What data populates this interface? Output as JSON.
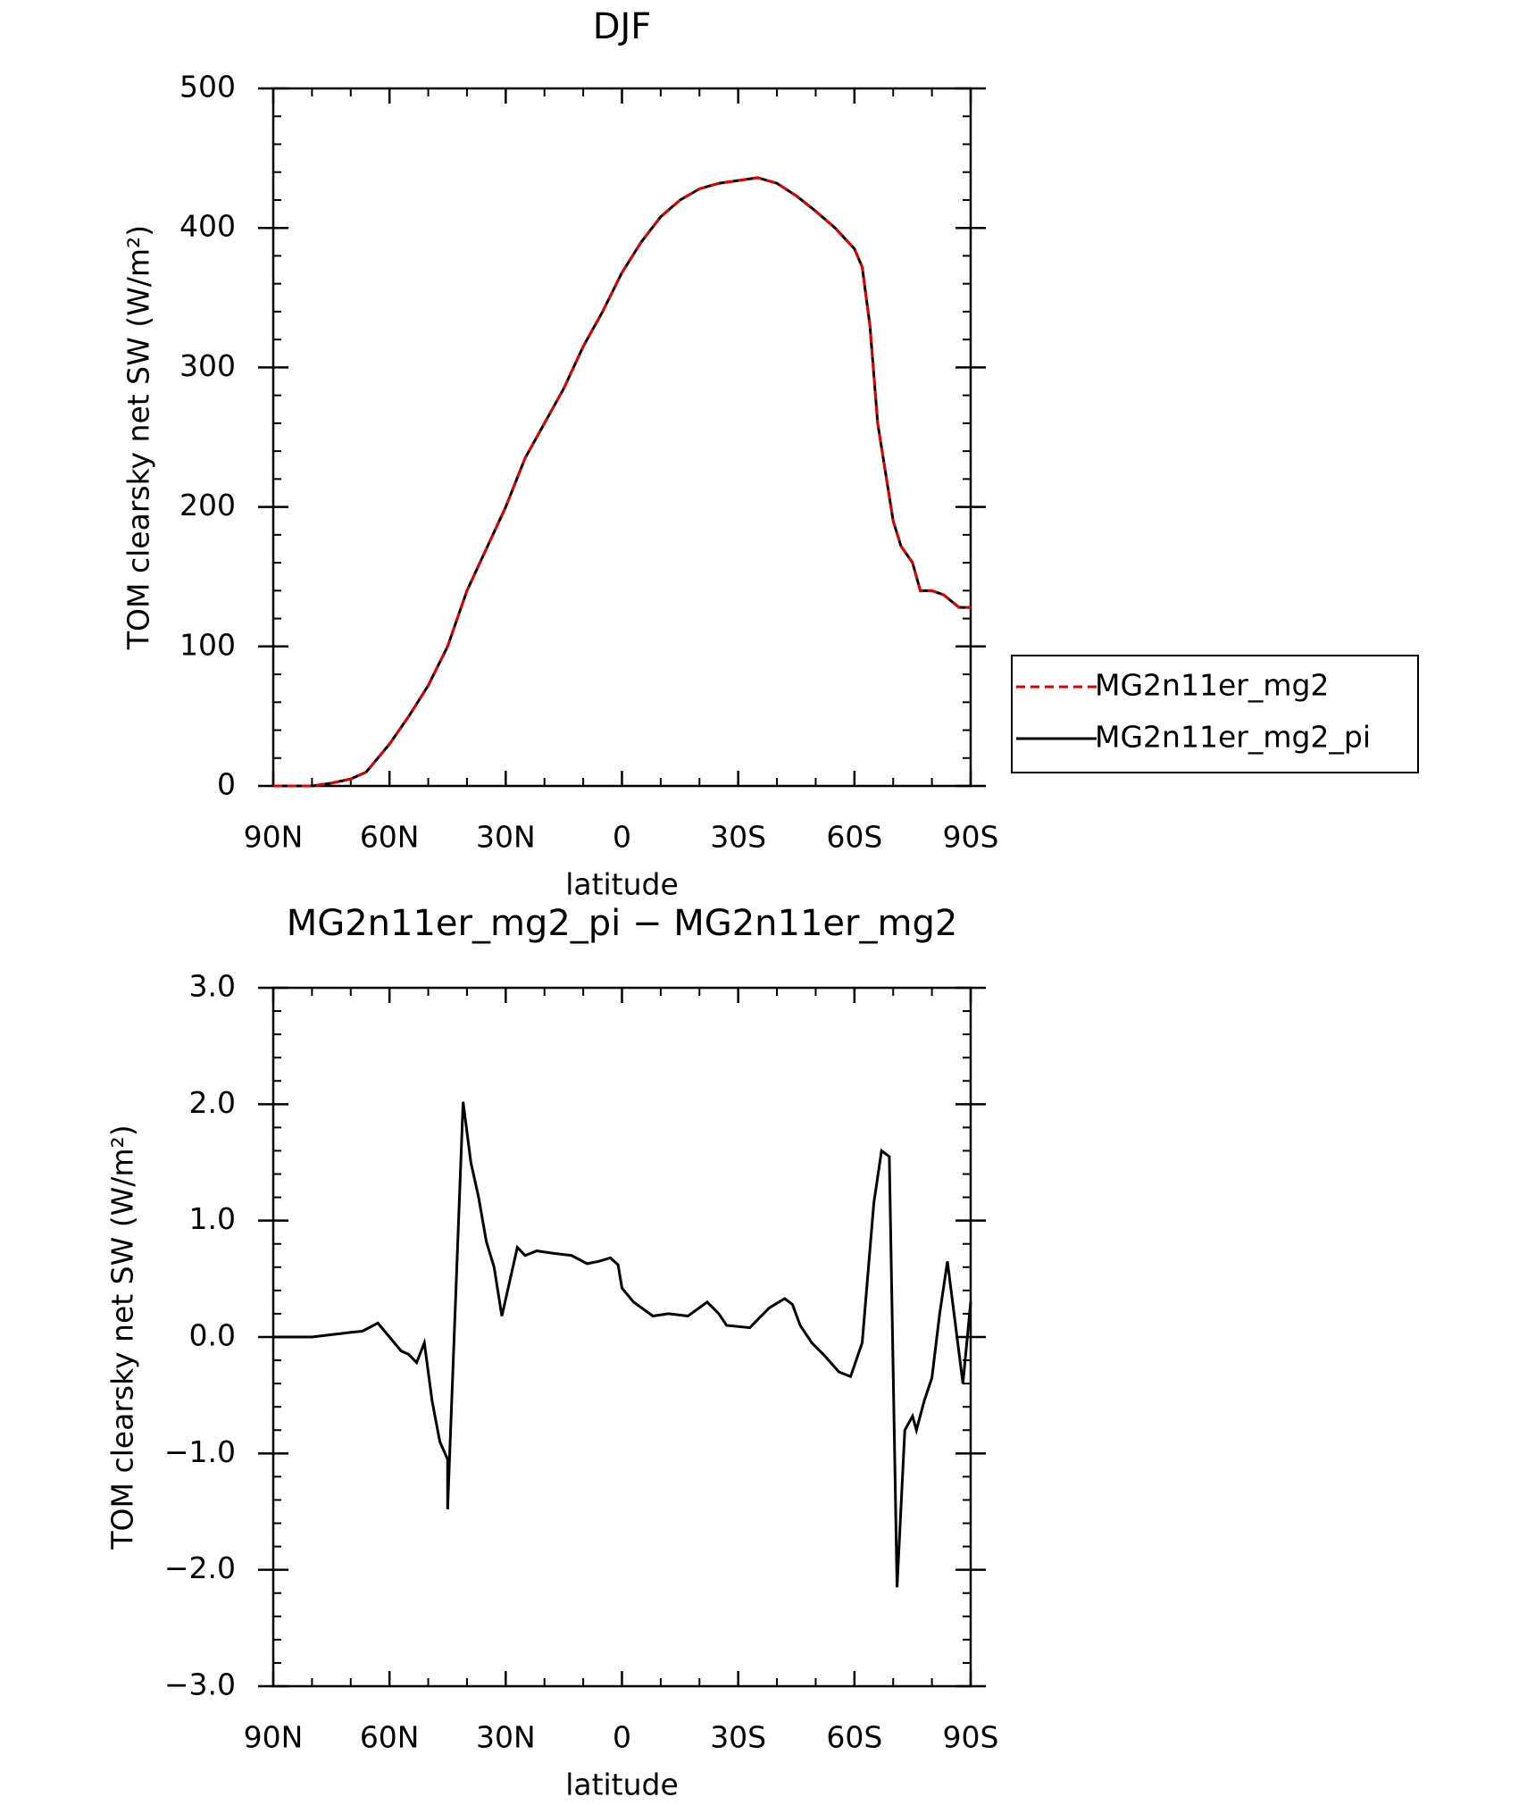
{
  "chart_data": [
    {
      "type": "line",
      "title": "DJF",
      "xlabel": "latitude",
      "ylabel": "TOM clearsky net SW (W/m²)",
      "x": [
        90,
        80,
        75,
        70,
        66,
        63,
        60,
        55,
        50,
        45,
        40,
        35,
        30,
        25,
        20,
        15,
        10,
        5,
        0,
        -5,
        -10,
        -15,
        -20,
        -25,
        -30,
        -35,
        -40,
        -45,
        -50,
        -55,
        -60,
        -62,
        -64,
        -66,
        -70,
        -72,
        -75,
        -77,
        -80,
        -83,
        -87,
        -90
      ],
      "series": [
        {
          "name": "MG2n11er_mg2",
          "color": "#e00000",
          "dash": true,
          "values": [
            0,
            0,
            2,
            5,
            10,
            20,
            30,
            50,
            72,
            100,
            140,
            170,
            200,
            235,
            260,
            285,
            315,
            340,
            368,
            390,
            408,
            420,
            428,
            432,
            434,
            436,
            432,
            423,
            412,
            400,
            385,
            372,
            330,
            260,
            190,
            172,
            160,
            140,
            140,
            137,
            128,
            128
          ]
        },
        {
          "name": "MG2n11er_mg2_pi",
          "color": "#000000",
          "dash": false,
          "values": [
            0,
            0,
            2,
            5,
            10,
            20,
            30,
            50,
            72,
            100,
            140,
            170,
            200,
            235,
            260,
            285,
            315,
            340,
            368,
            390,
            408,
            420,
            428,
            432,
            434,
            436,
            432,
            423,
            412,
            400,
            385,
            372,
            330,
            260,
            190,
            172,
            160,
            140,
            140,
            137,
            128,
            128
          ]
        }
      ],
      "xlim": [
        90,
        -90
      ],
      "xticks": [
        {
          "value": 90,
          "label": "90N"
        },
        {
          "value": 60,
          "label": "60N"
        },
        {
          "value": 30,
          "label": "30N"
        },
        0,
        {
          "value": -30,
          "label": "30S"
        },
        {
          "value": -60,
          "label": "60S"
        },
        {
          "value": -90,
          "label": "90S"
        }
      ],
      "ylim": [
        0,
        500
      ],
      "yticks": [
        0,
        100,
        200,
        300,
        400,
        500
      ],
      "legend": "right"
    },
    {
      "type": "line",
      "title": "MG2n11er_mg2_pi − MG2n11er_mg2",
      "xlabel": "latitude",
      "ylabel": "TOM clearsky net SW (W/m²)",
      "x": [
        90,
        80,
        75,
        70,
        67,
        63,
        60,
        57,
        55,
        53,
        51,
        49,
        47,
        45,
        45,
        41,
        39,
        37,
        35,
        33,
        31,
        27,
        25,
        22,
        18,
        13,
        9,
        6,
        3,
        1,
        0,
        -3,
        -8,
        -12,
        -17,
        -22,
        -25,
        -27,
        -33,
        -38,
        -42,
        -44,
        -46,
        -49,
        -52,
        -56,
        -59,
        -62,
        -65,
        -67,
        -69,
        -71,
        -73,
        -75,
        -76,
        -78,
        -80,
        -82,
        -84,
        -88,
        -90
      ],
      "series": [
        {
          "name": "MG2n11er_mg2_pi − MG2n11er_mg2",
          "color": "#000000",
          "dash": false,
          "values": [
            0,
            0,
            0.02,
            0.04,
            0.05,
            0.12,
            0.0,
            -0.12,
            -0.15,
            -0.22,
            -0.05,
            -0.55,
            -0.9,
            -1.05,
            -1.48,
            2.02,
            1.5,
            1.2,
            0.82,
            0.6,
            0.18,
            0.77,
            0.7,
            0.74,
            0.72,
            0.7,
            0.63,
            0.65,
            0.68,
            0.62,
            0.42,
            0.3,
            0.18,
            0.2,
            0.18,
            0.3,
            0.2,
            0.1,
            0.08,
            0.25,
            0.33,
            0.28,
            0.1,
            -0.05,
            -0.15,
            -0.3,
            -0.34,
            -0.05,
            1.15,
            1.6,
            1.55,
            -2.15,
            -0.8,
            -0.68,
            -0.8,
            -0.55,
            -0.35,
            0.2,
            0.65,
            -0.4,
            0.3
          ]
        }
      ],
      "xlim": [
        90,
        -90
      ],
      "xticks": [
        {
          "value": 90,
          "label": "90N"
        },
        {
          "value": 60,
          "label": "60N"
        },
        {
          "value": 30,
          "label": "30N"
        },
        0,
        {
          "value": -30,
          "label": "30S"
        },
        {
          "value": -60,
          "label": "60S"
        },
        {
          "value": -90,
          "label": "90S"
        }
      ],
      "ylim": [
        -3,
        3
      ],
      "yticks": [
        {
          "value": -3,
          "label": "−3.0"
        },
        {
          "value": -2,
          "label": "−2.0"
        },
        {
          "value": -1,
          "label": "−1.0"
        },
        {
          "value": 0,
          "label": "0.0"
        },
        {
          "value": 1,
          "label": "1.0"
        },
        {
          "value": 2,
          "label": "2.0"
        },
        {
          "value": 3,
          "label": "3.0"
        }
      ]
    }
  ]
}
